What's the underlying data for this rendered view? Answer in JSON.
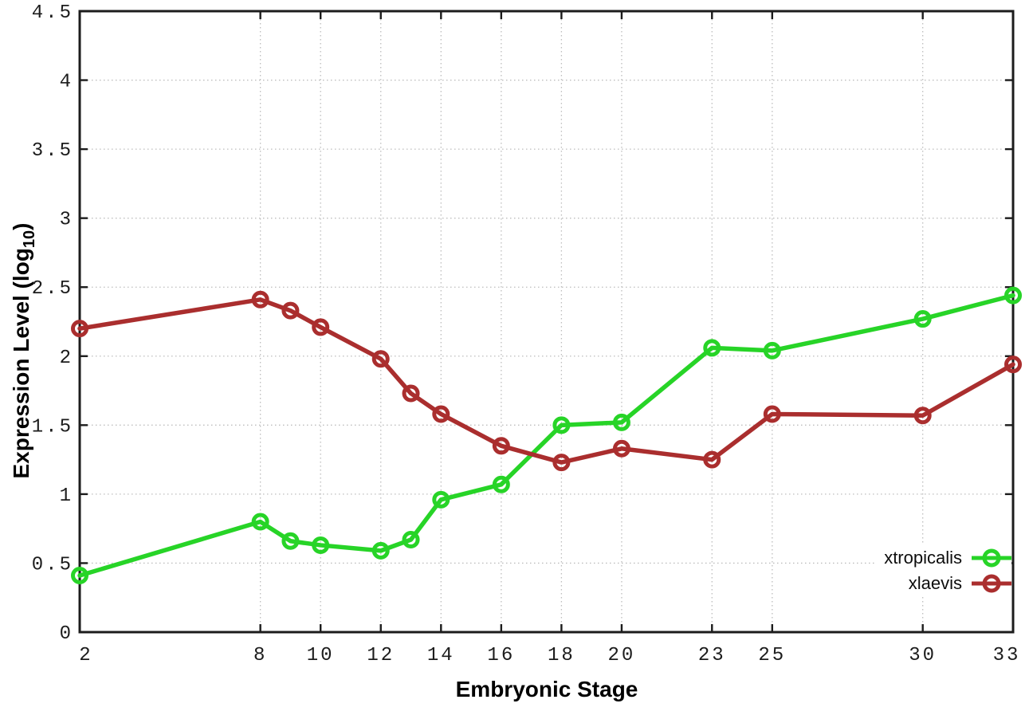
{
  "figure": {
    "background": "#ffffff"
  },
  "chart_data": {
    "type": "line",
    "title": "",
    "xlabel": "Embryonic Stage",
    "ylabel": "Expression Level (log10)",
    "ylabel_parts": {
      "prefix": "Expression Level (log",
      "subscript": "10",
      "suffix": ")"
    },
    "x": [
      2,
      8,
      9,
      10,
      12,
      13,
      14,
      16,
      18,
      20,
      23,
      25,
      30,
      33
    ],
    "series": [
      {
        "name": "xtropicalis",
        "color": "#27d427",
        "marker": "open-circle",
        "values": [
          0.41,
          0.8,
          0.66,
          0.63,
          0.59,
          0.67,
          0.96,
          1.07,
          1.5,
          1.52,
          2.06,
          2.04,
          2.27,
          2.44
        ]
      },
      {
        "name": "xlaevis",
        "color": "#aa2e2e",
        "marker": "open-circle",
        "values": [
          2.2,
          2.41,
          2.33,
          2.21,
          1.98,
          1.73,
          1.58,
          1.35,
          1.23,
          1.33,
          1.25,
          1.58,
          1.57,
          1.94
        ]
      }
    ],
    "x_ticks": [
      2,
      8,
      10,
      12,
      14,
      16,
      18,
      20,
      23,
      25,
      30,
      33
    ],
    "y_ticks": [
      0,
      0.5,
      1,
      1.5,
      2,
      2.5,
      3,
      3.5,
      4,
      4.5
    ],
    "xlim": [
      2,
      33
    ],
    "ylim": [
      0,
      4.5
    ],
    "grid": true,
    "legend_position": "bottom-right",
    "colors": {
      "grid": "#bdbdbd",
      "axis": "#1c1c1c",
      "tick_label": "#1c1c1c",
      "axis_label": "#000000"
    }
  }
}
